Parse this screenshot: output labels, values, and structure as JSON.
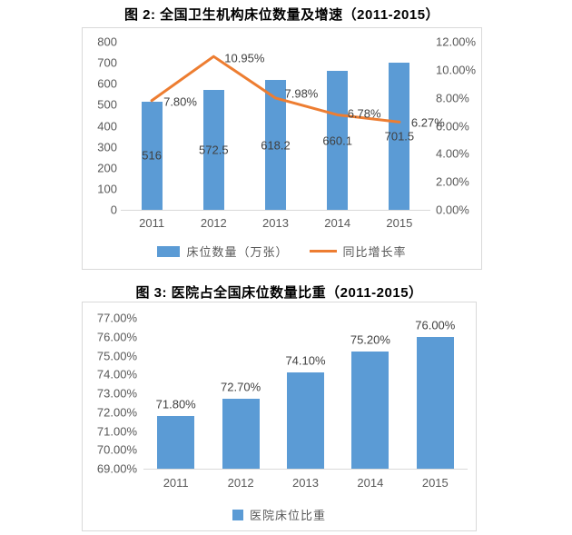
{
  "colors": {
    "bar": "#5b9bd5",
    "line": "#ed7d31",
    "axis_text": "#595959",
    "label_text": "#404040",
    "panel_border": "#d9d9d9"
  },
  "chart_data": [
    {
      "type": "bar",
      "subtype": "combo-bar-line",
      "title": "图 2: 全国卫生机构床位数量及增速（2011-2015）",
      "categories": [
        "2011",
        "2012",
        "2013",
        "2014",
        "2015"
      ],
      "series": [
        {
          "name": "床位数量（万张）",
          "type": "bar",
          "axis": "left",
          "values": [
            516,
            572.5,
            618.2,
            660.1,
            701.5
          ],
          "labels": [
            "516",
            "572.5",
            "618.2",
            "660.1",
            "701.5"
          ],
          "color": "#5b9bd5"
        },
        {
          "name": "同比增长率",
          "type": "line",
          "axis": "right",
          "values": [
            7.8,
            10.95,
            7.98,
            6.78,
            6.27
          ],
          "labels": [
            "7.80%",
            "10.95%",
            "7.98%",
            "6.78%",
            "6.27%"
          ],
          "color": "#ed7d31"
        }
      ],
      "left_axis": {
        "min": 0,
        "max": 800,
        "ticks": [
          "800",
          "700",
          "600",
          "500",
          "400",
          "300",
          "200",
          "100",
          "0"
        ]
      },
      "right_axis": {
        "min": 0,
        "max": 12,
        "ticks": [
          "12.00%",
          "10.00%",
          "8.00%",
          "6.00%",
          "4.00%",
          "2.00%",
          "0.00%"
        ]
      },
      "legend": [
        "床位数量（万张）",
        "同比增长率"
      ],
      "legend_position": "bottom",
      "grid": false
    },
    {
      "type": "bar",
      "title": "图 3: 医院占全国床位数量比重（2011-2015）",
      "categories": [
        "2011",
        "2012",
        "2013",
        "2014",
        "2015"
      ],
      "values": [
        71.8,
        72.7,
        74.1,
        75.2,
        76.0
      ],
      "labels": [
        "71.80%",
        "72.70%",
        "74.10%",
        "75.20%",
        "76.00%"
      ],
      "ylabel": "",
      "xlabel": "",
      "ylim": [
        69,
        77
      ],
      "yticks": [
        "77.00%",
        "76.00%",
        "75.00%",
        "74.00%",
        "73.00%",
        "72.00%",
        "71.00%",
        "70.00%",
        "69.00%"
      ],
      "legend": [
        "医院床位比重"
      ],
      "legend_position": "bottom",
      "bar_color": "#5b9bd5",
      "grid": false
    }
  ]
}
